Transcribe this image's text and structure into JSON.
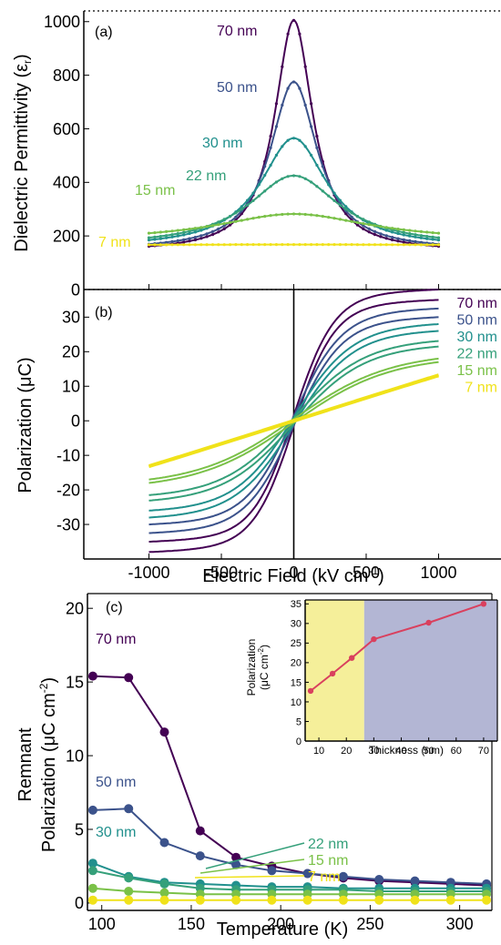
{
  "chart_data": [
    {
      "panel": "(a)",
      "type": "line",
      "title": "",
      "xlabel": "",
      "ylabel": "Dielectric Permittivity (ε",
      "ylabel_sub": "r",
      "ylabel_close": ")",
      "xlim": [
        -1450,
        1450
      ],
      "ylim": [
        0,
        1040
      ],
      "yticks": [
        0,
        200,
        400,
        600,
        800,
        1000
      ],
      "grid": false,
      "series": [
        {
          "name": "70 nm",
          "color": "#440154",
          "peak": 1005,
          "base": 140,
          "w": 160
        },
        {
          "name": "50 nm",
          "color": "#3b528b",
          "peak": 775,
          "base": 145,
          "w": 200
        },
        {
          "name": "30 nm",
          "color": "#21908d",
          "peak": 565,
          "base": 155,
          "w": 280
        },
        {
          "name": "22 nm",
          "color": "#35a07a",
          "peak": 425,
          "base": 160,
          "w": 380
        },
        {
          "name": "15 nm",
          "color": "#7ac148",
          "peak": 282,
          "base": 180,
          "w": 650
        },
        {
          "name": "7 nm",
          "color": "#f0e21a",
          "peak": 168,
          "base": 162,
          "w": 2000
        }
      ]
    },
    {
      "panel": "(b)",
      "type": "line",
      "title": "",
      "xlabel": "Electric Field (kV cm",
      "xlabel_sup": "-1",
      "xlabel_close": ")",
      "ylabel": "Polarization (μC)",
      "xlim": [
        -1450,
        1450
      ],
      "ylim": [
        -40,
        38
      ],
      "xticks": [
        -1000,
        -500,
        0,
        500,
        1000
      ],
      "yticks": [
        -30,
        -20,
        -10,
        0,
        10,
        20,
        30
      ],
      "grid": false,
      "series": [
        {
          "name": "70 nm",
          "color": "#440154",
          "pmax": 35,
          "pr": 3.0,
          "s": 280
        },
        {
          "name": "50 nm",
          "color": "#3b528b",
          "pmax": 30,
          "pr": 2.5,
          "s": 330
        },
        {
          "name": "30 nm",
          "color": "#21908d",
          "pmax": 26,
          "pr": 2.0,
          "s": 400
        },
        {
          "name": "22 nm",
          "color": "#35a07a",
          "pmax": 21.5,
          "pr": 1.6,
          "s": 480
        },
        {
          "name": "15 nm",
          "color": "#7ac148",
          "pmax": 17,
          "pr": 1.0,
          "s": 650
        },
        {
          "name": "7 nm",
          "color": "#f0e21a",
          "pmax": 13,
          "pr": 0.3,
          "s": 5000
        }
      ]
    },
    {
      "panel": "(c)",
      "type": "line",
      "title": "",
      "xlabel": "Temperature (K)",
      "ylabel_line1": "Remnant",
      "ylabel_line2": "Polarization (μC cm",
      "ylabel_sup": "-2",
      "ylabel_close": ")",
      "xlim": [
        92,
        318
      ],
      "ylim": [
        -0.5,
        21
      ],
      "xticks": [
        100,
        150,
        200,
        250,
        300
      ],
      "yticks": [
        0,
        5,
        10,
        15,
        20
      ],
      "grid": false,
      "x": [
        95,
        115,
        135,
        155,
        175,
        195,
        215,
        235,
        255,
        275,
        295,
        315
      ],
      "series": [
        {
          "name": "70 nm",
          "color": "#440154",
          "values": [
            15.4,
            15.3,
            11.6,
            4.9,
            3.1,
            2.5,
            2.0,
            1.7,
            1.5,
            1.4,
            1.3,
            1.2
          ]
        },
        {
          "name": "50 nm",
          "color": "#3b528b",
          "values": [
            6.3,
            6.4,
            4.1,
            3.2,
            2.6,
            2.2,
            2.0,
            1.8,
            1.6,
            1.5,
            1.4,
            1.3
          ]
        },
        {
          "name": "30 nm",
          "color": "#21908d",
          "values": [
            2.7,
            1.8,
            1.4,
            1.3,
            1.2,
            1.1,
            1.1,
            1.0,
            1.0,
            1.0,
            1.0,
            1.0
          ]
        },
        {
          "name": "22 nm",
          "color": "#35a07a",
          "values": [
            2.2,
            1.7,
            1.3,
            1.0,
            0.9,
            0.9,
            0.9,
            0.9,
            0.8,
            0.8,
            0.8,
            0.8
          ]
        },
        {
          "name": "15 nm",
          "color": "#7ac148",
          "values": [
            1.0,
            0.8,
            0.7,
            0.6,
            0.6,
            0.6,
            0.6,
            0.6,
            0.6,
            0.6,
            0.6,
            0.6
          ]
        },
        {
          "name": "7 nm",
          "color": "#f0e21a",
          "values": [
            0.2,
            0.2,
            0.2,
            0.2,
            0.2,
            0.2,
            0.2,
            0.2,
            0.2,
            0.2,
            0.2,
            0.2
          ]
        }
      ]
    },
    {
      "panel": "(c) inset",
      "type": "line",
      "title": "",
      "xlabel": "Thickness (nm)",
      "ylabel_line1": "Polarization",
      "ylabel_line2": "(μC cm",
      "ylabel_sup": "-2",
      "ylabel_close": ")",
      "xlim": [
        5,
        75
      ],
      "ylim": [
        0,
        36
      ],
      "xticks": [
        10,
        20,
        30,
        40,
        50,
        60,
        70
      ],
      "yticks": [
        0,
        5,
        10,
        15,
        20,
        25,
        30,
        35
      ],
      "grid": false,
      "shaded_regions": [
        {
          "from": 5,
          "to": 26.5,
          "color": "#f5ef9a"
        },
        {
          "from": 26.5,
          "to": 75,
          "color": "#b3b6d4"
        }
      ],
      "series": [
        {
          "name": "",
          "color": "#d9405e",
          "x": [
            7,
            15,
            22,
            30,
            50,
            70
          ],
          "values": [
            12.8,
            17.2,
            21.2,
            26.0,
            30.2,
            35.0
          ]
        }
      ]
    }
  ]
}
